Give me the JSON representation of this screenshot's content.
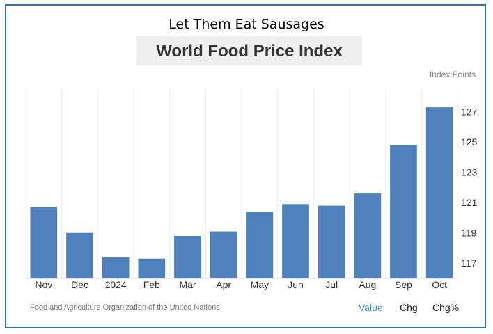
{
  "headline": "Let Them Eat Sausages",
  "chart_title": "World Food Price Index",
  "unit_label": "Index Points",
  "source": "Food and Agriculture Organization of the United Nations",
  "tabs": [
    {
      "label": "Value",
      "active": true
    },
    {
      "label": "Chg",
      "active": false
    },
    {
      "label": "Chg%",
      "active": false
    }
  ],
  "colors": {
    "bar": "#4f81bd",
    "frame": "#2e75b6",
    "active_tab": "#3d8fd6"
  },
  "chart_data": {
    "type": "bar",
    "title": "World Food Price Index",
    "ylabel": "Index Points",
    "categories": [
      "Nov",
      "Dec",
      "2024",
      "Feb",
      "Mar",
      "Apr",
      "May",
      "Jun",
      "Jul",
      "Aug",
      "Sep",
      "Oct"
    ],
    "values": [
      120.7,
      119.0,
      117.4,
      117.3,
      118.8,
      119.1,
      120.4,
      120.9,
      120.8,
      121.6,
      124.8,
      127.3
    ],
    "ylim": [
      116,
      128.5
    ],
    "yticks": [
      117,
      119,
      121,
      123,
      125,
      127
    ],
    "y_axis_side": "right",
    "grid": "vertical",
    "legend": "none"
  }
}
